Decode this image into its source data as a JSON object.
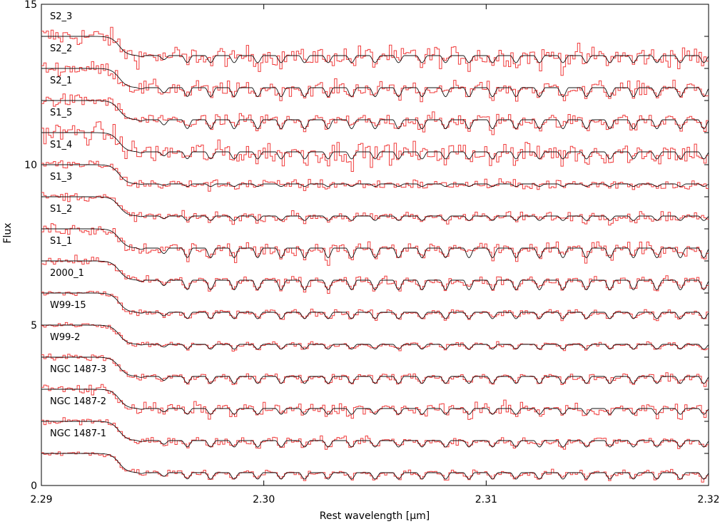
{
  "chart_data": {
    "type": "line",
    "title": "",
    "xlabel": "Rest wavelength [µm]",
    "ylabel": "Flux",
    "xlim": [
      2.29,
      2.32
    ],
    "ylim": [
      0,
      15
    ],
    "x_ticks": [
      "2.29",
      "2.30",
      "2.31",
      "2.32"
    ],
    "x_tick_values": [
      2.29,
      2.3,
      2.31,
      2.32
    ],
    "y_ticks": [
      "0",
      "5",
      "10",
      "15"
    ],
    "y_tick_values": [
      0,
      5,
      10,
      15
    ],
    "colors": {
      "observed": "#f03c3c",
      "model": "#111111"
    },
    "band_head_x": 2.2935,
    "series": [
      {
        "name": "S2_3",
        "offset": 14,
        "noise": 0.32,
        "amplitude": 0.22
      },
      {
        "name": "S2_2",
        "offset": 13,
        "noise": 0.22,
        "amplitude": 0.28
      },
      {
        "name": "S2_1",
        "offset": 12,
        "noise": 0.2,
        "amplitude": 0.28
      },
      {
        "name": "S1_5",
        "offset": 11,
        "noise": 0.34,
        "amplitude": 0.22
      },
      {
        "name": "S1_4",
        "offset": 10,
        "noise": 0.16,
        "amplitude": 0.08
      },
      {
        "name": "S1_3",
        "offset": 9,
        "noise": 0.14,
        "amplitude": 0.14
      },
      {
        "name": "S1_2",
        "offset": 8,
        "noise": 0.2,
        "amplitude": 0.3
      },
      {
        "name": "S1_1",
        "offset": 7,
        "noise": 0.13,
        "amplitude": 0.3
      },
      {
        "name": "2000_1",
        "offset": 6,
        "noise": 0.1,
        "amplitude": 0.2
      },
      {
        "name": "W99-15",
        "offset": 5,
        "noise": 0.08,
        "amplitude": 0.15
      },
      {
        "name": "W99-2",
        "offset": 4,
        "noise": 0.1,
        "amplitude": 0.22
      },
      {
        "name": "NGC 1487-3",
        "offset": 3,
        "noise": 0.18,
        "amplitude": 0.18
      },
      {
        "name": "NGC 1487-2",
        "offset": 2,
        "noise": 0.11,
        "amplitude": 0.2
      },
      {
        "name": "NGC 1487-1",
        "offset": 1,
        "noise": 0.09,
        "amplitude": 0.2
      }
    ]
  }
}
